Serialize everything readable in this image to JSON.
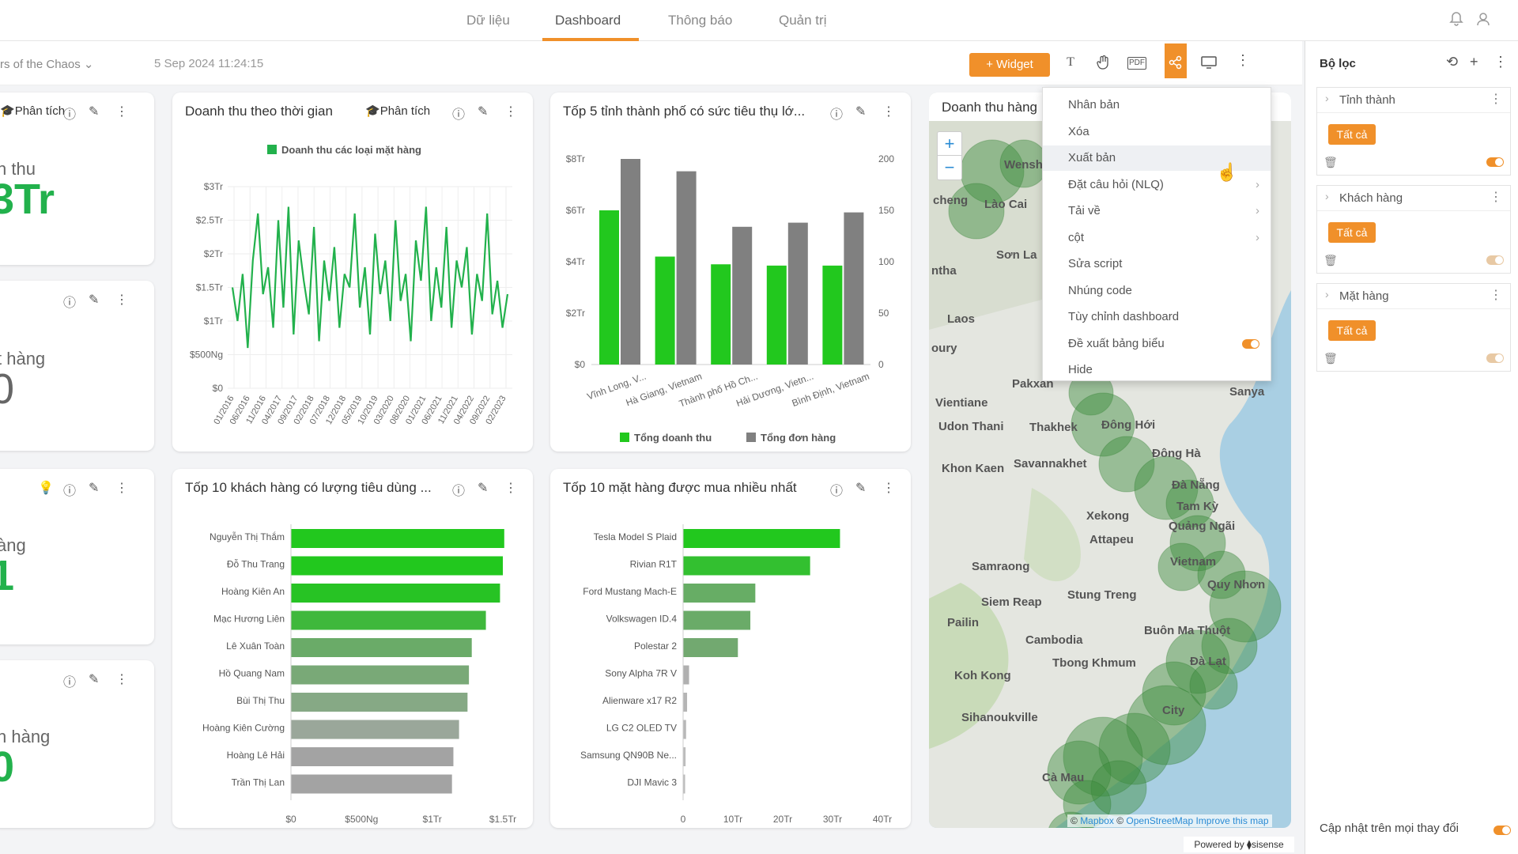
{
  "nav": {
    "tabs": [
      "Dữ liệu",
      "Dashboard",
      "Thông báo",
      "Quản trị"
    ],
    "active_tab": "Dashboard"
  },
  "toolbar": {
    "dashboard_name": "rs of the Chaos",
    "timestamp": "5 Sep 2024 11:24:15",
    "widget_label": "+ Widget",
    "pdf_label": "PDF",
    "text_icon_label": "T"
  },
  "kpi_cards": [
    {
      "title_icon_text": "Phân tích",
      "label": "h thu",
      "value": "3Tr"
    },
    {
      "label": "t hàng",
      "value": "0"
    },
    {
      "label": "àng",
      "value": "1"
    },
    {
      "label": "h hàng",
      "value": "0"
    }
  ],
  "cards": {
    "time": {
      "title": "Doanh thu theo thời gian",
      "analysis": "Phân tích"
    },
    "top5": {
      "title": "Tốp 5 tỉnh thành phố có sức tiêu thụ lớ..."
    },
    "top10c": {
      "title": "Tốp 10 khách hàng có lượng tiêu dùng ..."
    },
    "top10p": {
      "title": "Tốp 10 mặt hàng được mua nhiều nhất"
    },
    "map": {
      "title": "Doanh thu hàng"
    }
  },
  "menu": {
    "items": [
      {
        "label": "Nhân bản",
        "arrow": false,
        "toggle": false
      },
      {
        "label": "Xóa",
        "arrow": false,
        "toggle": false
      },
      {
        "label": "Xuất bản",
        "arrow": false,
        "toggle": false
      },
      {
        "label": "Đặt câu hỏi (NLQ)",
        "arrow": true,
        "toggle": false
      },
      {
        "label": "Tải về",
        "arrow": true,
        "toggle": false
      },
      {
        "label": "cột",
        "arrow": true,
        "toggle": false
      },
      {
        "label": "Sửa script",
        "arrow": false,
        "toggle": false
      },
      {
        "label": "Nhúng code",
        "arrow": false,
        "toggle": false
      },
      {
        "label": "Tùy chỉnh dashboard",
        "arrow": false,
        "toggle": false
      },
      {
        "label": "Đề xuất bảng biểu",
        "arrow": false,
        "toggle": true
      },
      {
        "label": "Hide",
        "arrow": false,
        "toggle": false
      }
    ],
    "highlighted": "Xuất bản"
  },
  "filters": {
    "title": "Bộ lọc",
    "items": [
      {
        "label": "Tỉnh thành",
        "value": "Tất cả"
      },
      {
        "label": "Khách hàng",
        "value": "Tất cả"
      },
      {
        "label": "Mặt hàng",
        "value": "Tất cả"
      }
    ],
    "update_label": "Cập nhật trên mọi thay đổi"
  },
  "map": {
    "labels": [
      {
        "t": "Wensh",
        "x": 1270,
        "y": 200
      },
      {
        "t": "cheng",
        "x": 1180,
        "y": 245
      },
      {
        "t": "Lào Cai",
        "x": 1245,
        "y": 250
      },
      {
        "t": "Sơn La",
        "x": 1260,
        "y": 314
      },
      {
        "t": "ntha",
        "x": 1178,
        "y": 334
      },
      {
        "t": "Laos",
        "x": 1198,
        "y": 395
      },
      {
        "t": "oury",
        "x": 1178,
        "y": 432
      },
      {
        "t": "Pakxan",
        "x": 1280,
        "y": 477
      },
      {
        "t": "Vientiane",
        "x": 1183,
        "y": 501
      },
      {
        "t": "Udon Thani",
        "x": 1187,
        "y": 531
      },
      {
        "t": "Thakhek",
        "x": 1302,
        "y": 532
      },
      {
        "t": "Đông Hới",
        "x": 1393,
        "y": 529
      },
      {
        "t": "Đông Hà",
        "x": 1457,
        "y": 565
      },
      {
        "t": "Savannakhet",
        "x": 1282,
        "y": 578
      },
      {
        "t": "Khon Kaen",
        "x": 1191,
        "y": 584
      },
      {
        "t": "Đà Nẵng",
        "x": 1482,
        "y": 605
      },
      {
        "t": "Tam Kỳ",
        "x": 1488,
        "y": 632
      },
      {
        "t": "Quảng Ngãi",
        "x": 1478,
        "y": 657
      },
      {
        "t": "Xekong",
        "x": 1374,
        "y": 644
      },
      {
        "t": "Attapeu",
        "x": 1378,
        "y": 674
      },
      {
        "t": "Vietnam",
        "x": 1480,
        "y": 702
      },
      {
        "t": "Samraong",
        "x": 1229,
        "y": 708
      },
      {
        "t": "Quy Nhơn",
        "x": 1527,
        "y": 731
      },
      {
        "t": "Siem Reap",
        "x": 1241,
        "y": 753
      },
      {
        "t": "Stung Treng",
        "x": 1350,
        "y": 744
      },
      {
        "t": "Pailin",
        "x": 1198,
        "y": 779
      },
      {
        "t": "Buôn Ma Thuột",
        "x": 1447,
        "y": 789
      },
      {
        "t": "Cambodia",
        "x": 1297,
        "y": 801
      },
      {
        "t": "Tbong Khmum",
        "x": 1331,
        "y": 830
      },
      {
        "t": "Đà Lạt",
        "x": 1505,
        "y": 828
      },
      {
        "t": "Koh Kong",
        "x": 1207,
        "y": 846
      },
      {
        "t": "Sihanoukville",
        "x": 1216,
        "y": 899
      },
      {
        "t": "Cà Mau",
        "x": 1318,
        "y": 975
      },
      {
        "t": "City",
        "x": 1470,
        "y": 890
      },
      {
        "t": "Sanya",
        "x": 1555,
        "y": 487
      }
    ],
    "attribution": [
      "© ",
      "Mapbox",
      " © ",
      "OpenStreetMap",
      " ",
      "Improve this map"
    ]
  },
  "powered_by": "Powered by ⧫sisense",
  "chart_data": [
    {
      "type": "line",
      "title": "Doanh thu theo thời gian",
      "series": [
        {
          "name": "Doanh thu các loại mặt hàng",
          "values": [
            1.5,
            1.0,
            1.7,
            0.6,
            1.9,
            2.6,
            1.4,
            1.8,
            0.9,
            2.5,
            1.2,
            2.7,
            0.8,
            2.2,
            1.6,
            1.1,
            2.4,
            0.7,
            1.9,
            1.3,
            2.1,
            0.9,
            1.7,
            1.5,
            2.6,
            1.2,
            1.8,
            0.8,
            2.3,
            1.4,
            1.9,
            1.0,
            2.5,
            1.3,
            1.7,
            0.7,
            2.2,
            1.6,
            2.7,
            1.0,
            1.8,
            1.2,
            2.4,
            0.9,
            1.9,
            1.5,
            2.1,
            0.8,
            1.7,
            1.3,
            2.6,
            1.1,
            1.6,
            0.9,
            1.4
          ]
        }
      ],
      "x_tick_labels": [
        "01/2016",
        "06/2016",
        "11/2016",
        "04/2017",
        "09/2017",
        "02/2018",
        "07/2018",
        "12/2018",
        "05/2019",
        "10/2019",
        "03/2020",
        "08/2020",
        "01/2021",
        "06/2021",
        "11/2021",
        "04/2022",
        "09/2022",
        "02/2023"
      ],
      "y_tick_labels": [
        "$0",
        "$500Ng",
        "$1Tr",
        "$1.5Tr",
        "$2Tr",
        "$2.5Tr",
        "$3Tr"
      ],
      "ylim": [
        0,
        3
      ],
      "legend": "top"
    },
    {
      "type": "bar",
      "title": "Tốp 5 tỉnh thành phố có sức tiêu thụ lớ...",
      "categories": [
        "Vĩnh Long, V...",
        "Hà Giang, Vietnam",
        "Thành phố Hồ Ch...",
        "Hải Dương, Vietn...",
        "Bình Định, Vietnam"
      ],
      "series": [
        {
          "name": "Tổng doanh thu",
          "values": [
            6.0,
            4.2,
            3.9,
            3.85,
            3.85
          ]
        },
        {
          "name": "Tổng đơn hàng",
          "values": [
            200,
            188,
            134,
            138,
            148
          ]
        }
      ],
      "y_tick_labels": [
        "$0",
        "$2Tr",
        "$4Tr",
        "$6Tr",
        "$8Tr"
      ],
      "y2_tick_labels": [
        "0",
        "50",
        "100",
        "150",
        "200"
      ],
      "ylim": [
        0,
        8
      ],
      "y2lim": [
        0,
        200
      ],
      "legend": "bottom"
    },
    {
      "type": "bar",
      "title": "Tốp 10 khách hàng có lượng tiêu dùng ...",
      "categories": [
        "Nguyễn Thị Thắm",
        "Đỗ Thu Trang",
        "Hoàng Kiên An",
        "Mạc Hương Liên",
        "Lê Xuân Toàn",
        "Hồ Quang Nam",
        "Bùi Thị Thu",
        "Hoàng Kiên Cường",
        "Hoàng Lê Hải",
        "Trần Thị Lan"
      ],
      "values": [
        1.51,
        1.5,
        1.48,
        1.38,
        1.28,
        1.26,
        1.25,
        1.19,
        1.15,
        1.14
      ],
      "x_tick_labels": [
        "$0",
        "$500Ng",
        "$1Tr",
        "$1.5Tr"
      ],
      "xlim": [
        0,
        1.5
      ]
    },
    {
      "type": "bar",
      "title": "Tốp 10 mặt hàng được mua nhiều nhất",
      "categories": [
        "Tesla Model S Plaid",
        "Rivian R1T",
        "Ford Mustang Mach-E",
        "Volkswagen ID.4",
        "Polestar 2",
        "Sony Alpha 7R V",
        "Alienware x17 R2",
        "LG C2 OLED TV",
        "Samsung QN90B Ne...",
        "DJI Mavic 3"
      ],
      "values": [
        31.5,
        25.5,
        14.5,
        13.5,
        11.0,
        1.2,
        0.8,
        0.6,
        0.5,
        0.4
      ],
      "x_tick_labels": [
        "0",
        "10Tr",
        "20Tr",
        "30Tr",
        "40Tr"
      ],
      "xlim": [
        0,
        40
      ]
    }
  ]
}
